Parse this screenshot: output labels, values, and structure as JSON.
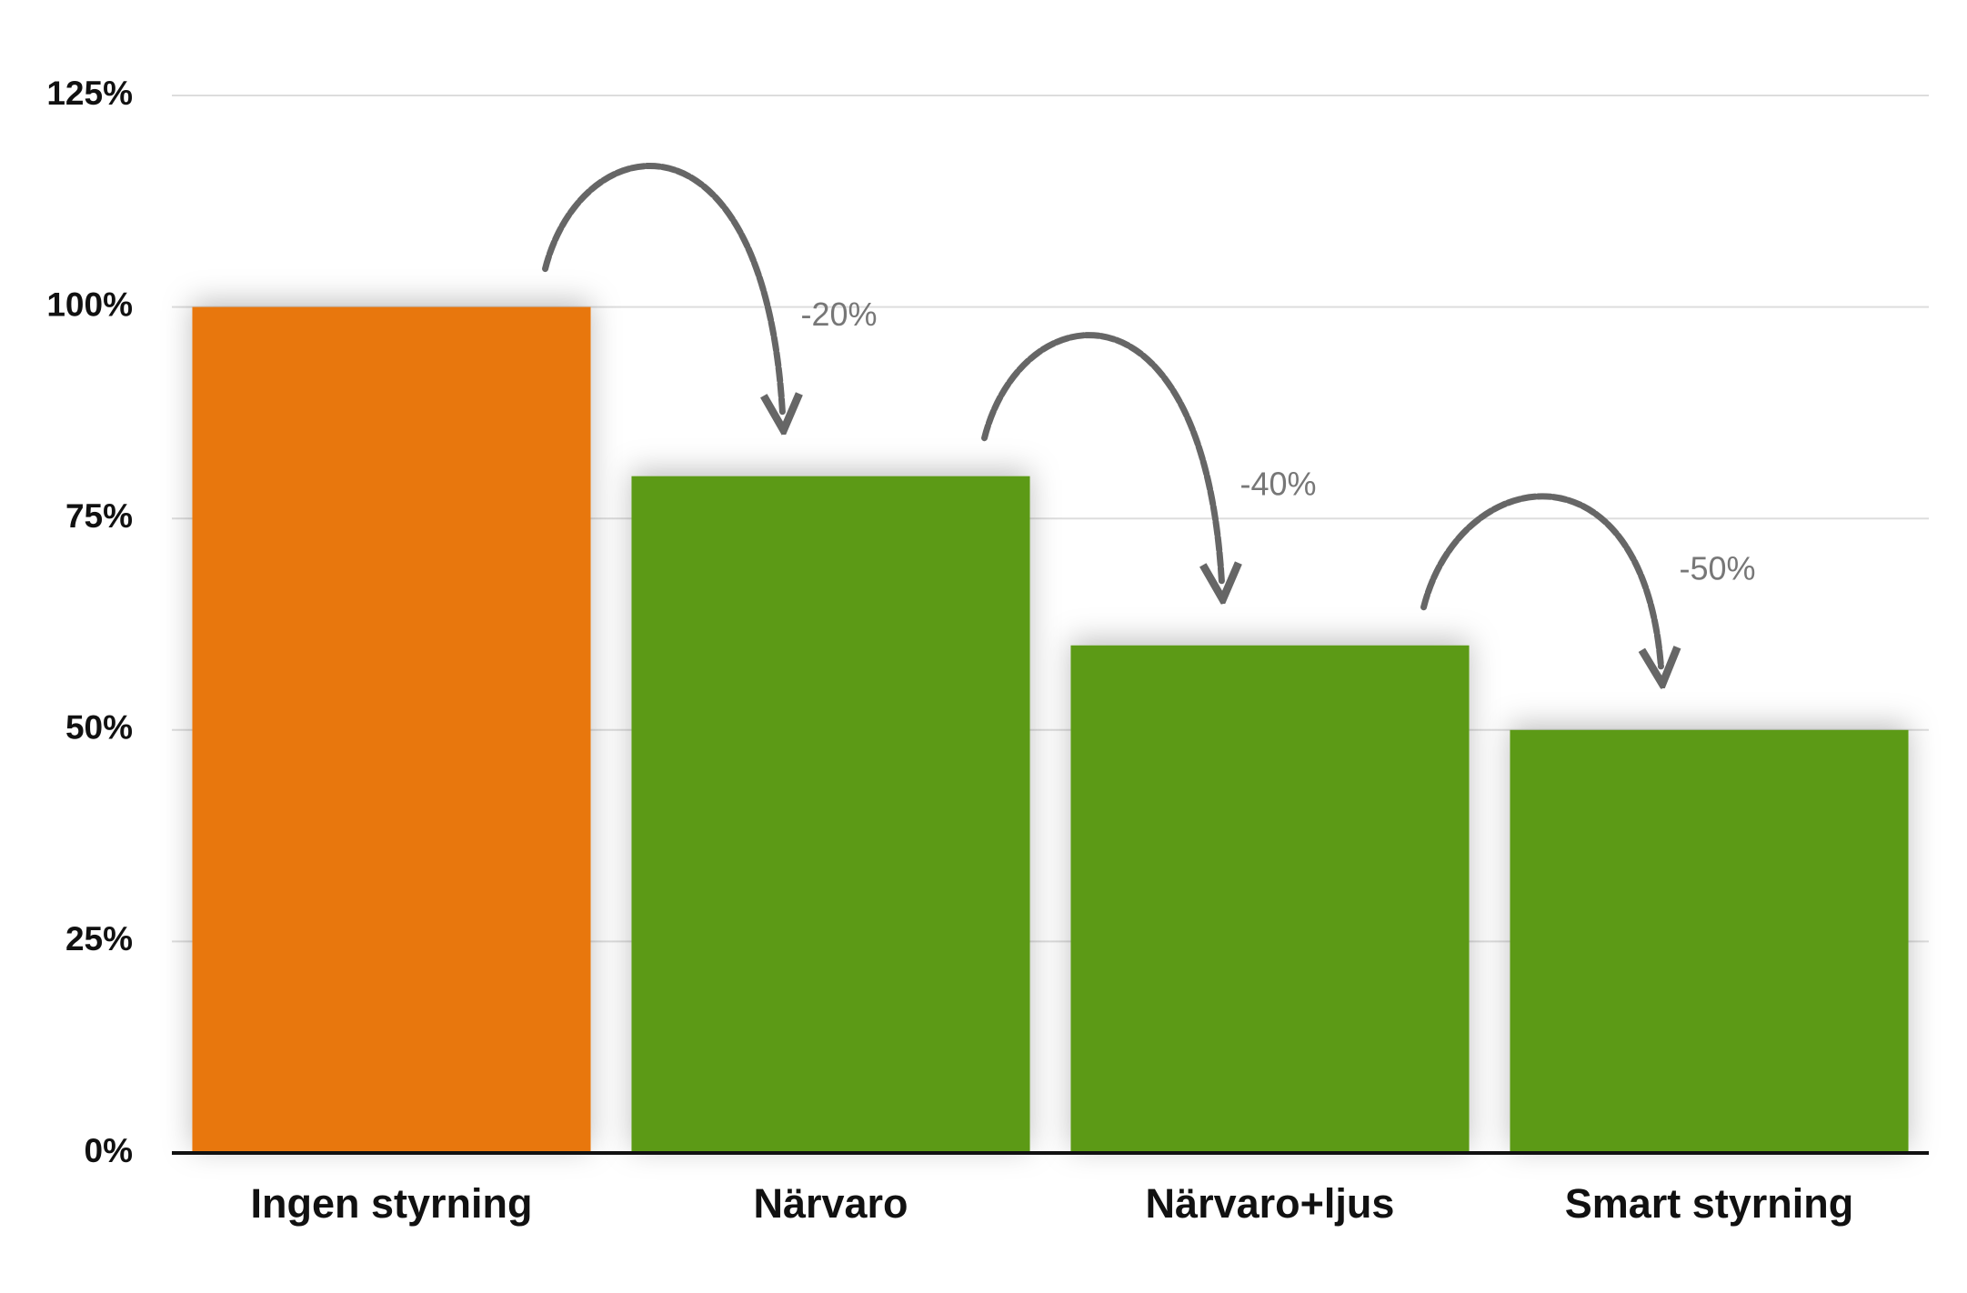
{
  "chart_data": {
    "type": "bar",
    "categories": [
      "Ingen styrning",
      "Närvaro",
      "Närvaro+ljus",
      "Smart styrning"
    ],
    "values": [
      100,
      80,
      60,
      50
    ],
    "colors": [
      "#e8770c",
      "#5c9a14",
      "#5c9a14",
      "#5c9a14"
    ],
    "ylim": [
      0,
      125
    ],
    "yticks": [
      {
        "value": 0,
        "label": "0%"
      },
      {
        "value": 25,
        "label": "25%"
      },
      {
        "value": 50,
        "label": "50%"
      },
      {
        "value": 75,
        "label": "75%"
      },
      {
        "value": 100,
        "label": "100%"
      },
      {
        "value": 125,
        "label": "125%"
      }
    ],
    "grid": true,
    "annotations": [
      "-20%",
      "-40%",
      "-50%"
    ]
  }
}
